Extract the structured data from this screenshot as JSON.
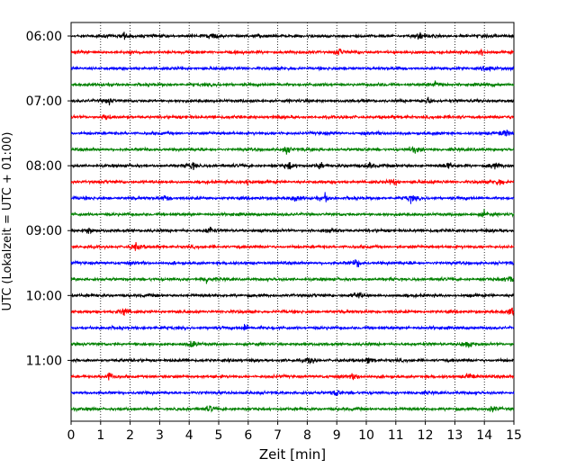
{
  "chart_data": {
    "type": "line",
    "title": "",
    "xlabel": "Zeit  [min]",
    "ylabel": "UTC (Lokalzeit = UTC + 01:00)",
    "xlim": [
      0,
      15
    ],
    "xticks": [
      "0",
      "1",
      "2",
      "3",
      "4",
      "5",
      "6",
      "7",
      "8",
      "9",
      "10",
      "11",
      "12",
      "13",
      "14",
      "15"
    ],
    "grid": "vertical-dotted",
    "trace_interval_minutes": 15,
    "start_time": "06:00",
    "yticks": [
      "06:00",
      "07:00",
      "08:00",
      "09:00",
      "10:00",
      "11:00"
    ],
    "colors_cycle": [
      "#000000",
      "#ff0000",
      "#0000ff",
      "#008000"
    ],
    "traces": [
      {
        "start": "06:00",
        "color": "#000000",
        "events_min": [
          1.8,
          4.8,
          11.8
        ]
      },
      {
        "start": "06:15",
        "color": "#ff0000",
        "events_min": [
          9.1,
          13.9
        ]
      },
      {
        "start": "06:30",
        "color": "#0000ff",
        "events_min": [
          14.1
        ]
      },
      {
        "start": "06:45",
        "color": "#008000",
        "events_min": [
          12.4
        ]
      },
      {
        "start": "07:00",
        "color": "#000000",
        "events_min": [
          1.3,
          12.1
        ]
      },
      {
        "start": "07:15",
        "color": "#ff0000",
        "events_min": [
          1.2
        ]
      },
      {
        "start": "07:30",
        "color": "#0000ff",
        "events_min": [
          14.7
        ]
      },
      {
        "start": "07:45",
        "color": "#008000",
        "events_min": [
          7.3,
          11.6
        ]
      },
      {
        "start": "08:00",
        "color": "#000000",
        "events_min": [
          4.1,
          7.4,
          8.4,
          10.1,
          12.8,
          14.3
        ]
      },
      {
        "start": "08:15",
        "color": "#ff0000",
        "events_min": [
          6.0,
          10.9,
          14.5
        ]
      },
      {
        "start": "08:30",
        "color": "#0000ff",
        "events_min": [
          3.2,
          7.6,
          8.6,
          11.5
        ]
      },
      {
        "start": "08:45",
        "color": "#008000",
        "events_min": [
          14.0
        ]
      },
      {
        "start": "09:00",
        "color": "#000000",
        "events_min": [
          0.6,
          4.7,
          8.8
        ]
      },
      {
        "start": "09:15",
        "color": "#ff0000",
        "events_min": [
          2.2
        ]
      },
      {
        "start": "09:30",
        "color": "#0000ff",
        "events_min": [
          9.7
        ]
      },
      {
        "start": "09:45",
        "color": "#008000",
        "events_min": [
          4.6,
          14.9
        ]
      },
      {
        "start": "10:00",
        "color": "#000000",
        "events_min": [
          9.7
        ]
      },
      {
        "start": "10:15",
        "color": "#ff0000",
        "events_min": [
          1.8,
          14.9
        ]
      },
      {
        "start": "10:30",
        "color": "#0000ff",
        "events_min": [
          5.9
        ]
      },
      {
        "start": "10:45",
        "color": "#008000",
        "events_min": [
          4.1,
          13.4
        ]
      },
      {
        "start": "11:00",
        "color": "#000000",
        "events_min": [
          8.1,
          10.1
        ]
      },
      {
        "start": "11:15",
        "color": "#ff0000",
        "events_min": [
          1.3,
          9.6,
          13.5
        ]
      },
      {
        "start": "11:30",
        "color": "#0000ff",
        "events_min": [
          9.0
        ]
      },
      {
        "start": "11:45",
        "color": "#008000",
        "events_min": [
          4.7,
          14.3
        ]
      }
    ]
  }
}
